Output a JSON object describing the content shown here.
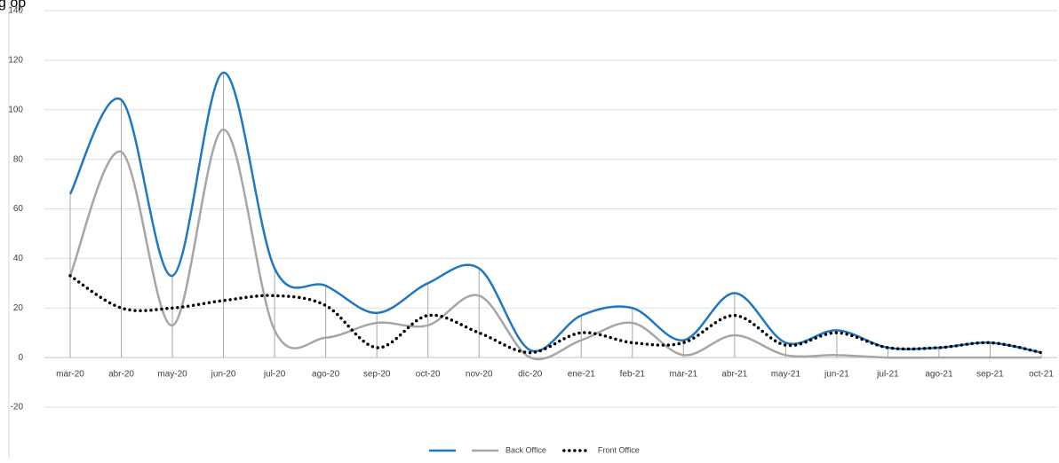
{
  "chart_data": {
    "type": "line",
    "title": "g op",
    "categories": [
      "mar-20",
      "abr-20",
      "may-20",
      "jun-20",
      "jul-20",
      "ago-20",
      "sep-20",
      "oct-20",
      "nov-20",
      "dic-20",
      "ene-21",
      "feb-21",
      "mar-21",
      "abr-21",
      "may-21",
      "jun-21",
      "jul-21",
      "ago-21",
      "sep-21",
      "oct-21"
    ],
    "series": [
      {
        "color": "#1f77c4",
        "style": "solid",
        "values": [
          66,
          104,
          33,
          115,
          36,
          29,
          18,
          30,
          36,
          3,
          17,
          20,
          7,
          26,
          6,
          11,
          4,
          4,
          6,
          2
        ]
      },
      {
        "name": "Back Office",
        "color": "#a6a6a6",
        "style": "solid",
        "values": [
          33,
          83,
          13,
          92,
          11,
          8,
          14,
          13,
          25,
          0,
          7,
          14,
          1,
          9,
          1,
          1,
          0,
          0,
          0,
          0
        ]
      },
      {
        "name": "Front Office",
        "color": "#000000",
        "style": "dotted",
        "values": [
          33,
          20,
          20,
          23,
          25,
          21,
          4,
          17,
          10,
          2,
          10,
          6,
          6,
          17,
          5,
          10,
          4,
          4,
          6,
          2
        ]
      }
    ],
    "ylim": [
      -20,
      140
    ],
    "yticks": [
      -20,
      0,
      20,
      40,
      60,
      80,
      100,
      120,
      140
    ],
    "grid": true,
    "drop_lines": true,
    "smooth": true,
    "legend": "bottom"
  }
}
